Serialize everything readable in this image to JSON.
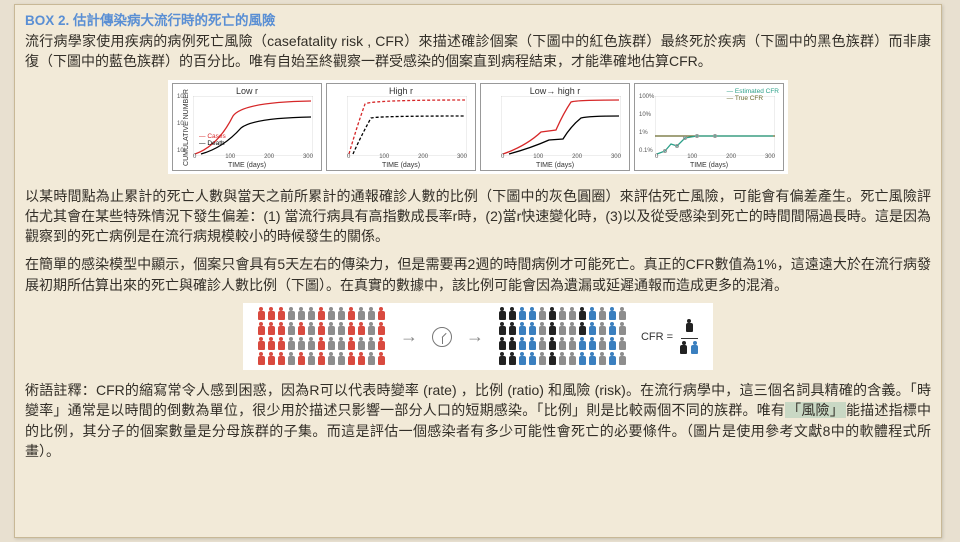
{
  "box_title": "BOX 2. 估計傳染病大流行時的死亡的風險",
  "para1": "流行病學家使用疾病的病例死亡風險（casefatality risk , CFR）來描述確診個案（下圖中的紅色族群）最終死於疾病（下圖中的黑色族群）而非康復（下圖中的藍色族群）的百分比。唯有自始至終觀察一群受感染的個案直到病程結束，才能準確地估算CFR。",
  "para2": "以某時間點為止累計的死亡人數與當天之前所累計的通報確診人數的比例（下圖中的灰色圓圈）來評估死亡風險，可能會有偏差產生。死亡風險評估尤其會在某些特殊情況下發生偏差：(1) 當流行病具有高指數成長率r時，(2)當r快速變化時，(3)以及從受感染到死亡的時間間隔過長時。這是因為觀察到的死亡病例是在流行病規模較小的時候發生的關係。",
  "para3": "在簡單的感染模型中顯示，個案只會具有5天左右的傳染力，但是需要再2週的時間病例才可能死亡。真正的CFR數值為1%，這遠遠大於在流行病發展初期所估算出來的死亡與確診人數比例（下圖）。在真實的數據中，該比例可能會因為遺漏或延遲通報而造成更多的混淆。",
  "para4a": "術語註釋：CFR的縮寫常令人感到困惑，因為R可以代表時變率 (rate) ，比例 (ratio) 和風險 (risk)。在流行病學中，這三個名詞具精確的含義。「時變率」通常是以時間的倒數為單位，很少用於描述只影響一部分人口的短期感染。「比例」則是比較兩個不同的族群。唯有",
  "para4_hl": "「風險」",
  "para4b": "能描述指標中的比例，其分子的個案數量是分母族群的子集。而這是評估一個感染者有多少可能性會死亡的必要條件。（圖片是使用參考文獻8中的軟體程式所畫）。",
  "charts": {
    "ylabel": "CUMULATIVE NUMBER",
    "xlabel": "TIME (days)",
    "xticks": [
      "0",
      "50",
      "100",
      "150",
      "200",
      "250",
      "300"
    ],
    "c1": {
      "title": "Low r",
      "yt": [
        "10⁵",
        "10³",
        "10¹"
      ],
      "legend_cases": "Cases",
      "legend_death": "Death",
      "cases_color": "#d62728",
      "death_color": "#000000"
    },
    "c2": {
      "title": "High r",
      "yt": [
        "",
        "",
        ""
      ]
    },
    "c3": {
      "title": "Low→ high r",
      "yt": [
        "",
        "",
        ""
      ]
    },
    "c4": {
      "title": "",
      "yt": [
        "100%",
        "10%",
        "1%",
        "0.1%"
      ],
      "legend_est": "Estimated CFR",
      "legend_true": "True CFR",
      "est_color": "#2ca089",
      "true_color": "#6a6b2f"
    }
  },
  "info": {
    "colors": {
      "red": "#d94a3f",
      "blue": "#3a7fbf",
      "gray": "#8d8d8d",
      "black": "#222222"
    },
    "cfr_label": "CFR ="
  }
}
